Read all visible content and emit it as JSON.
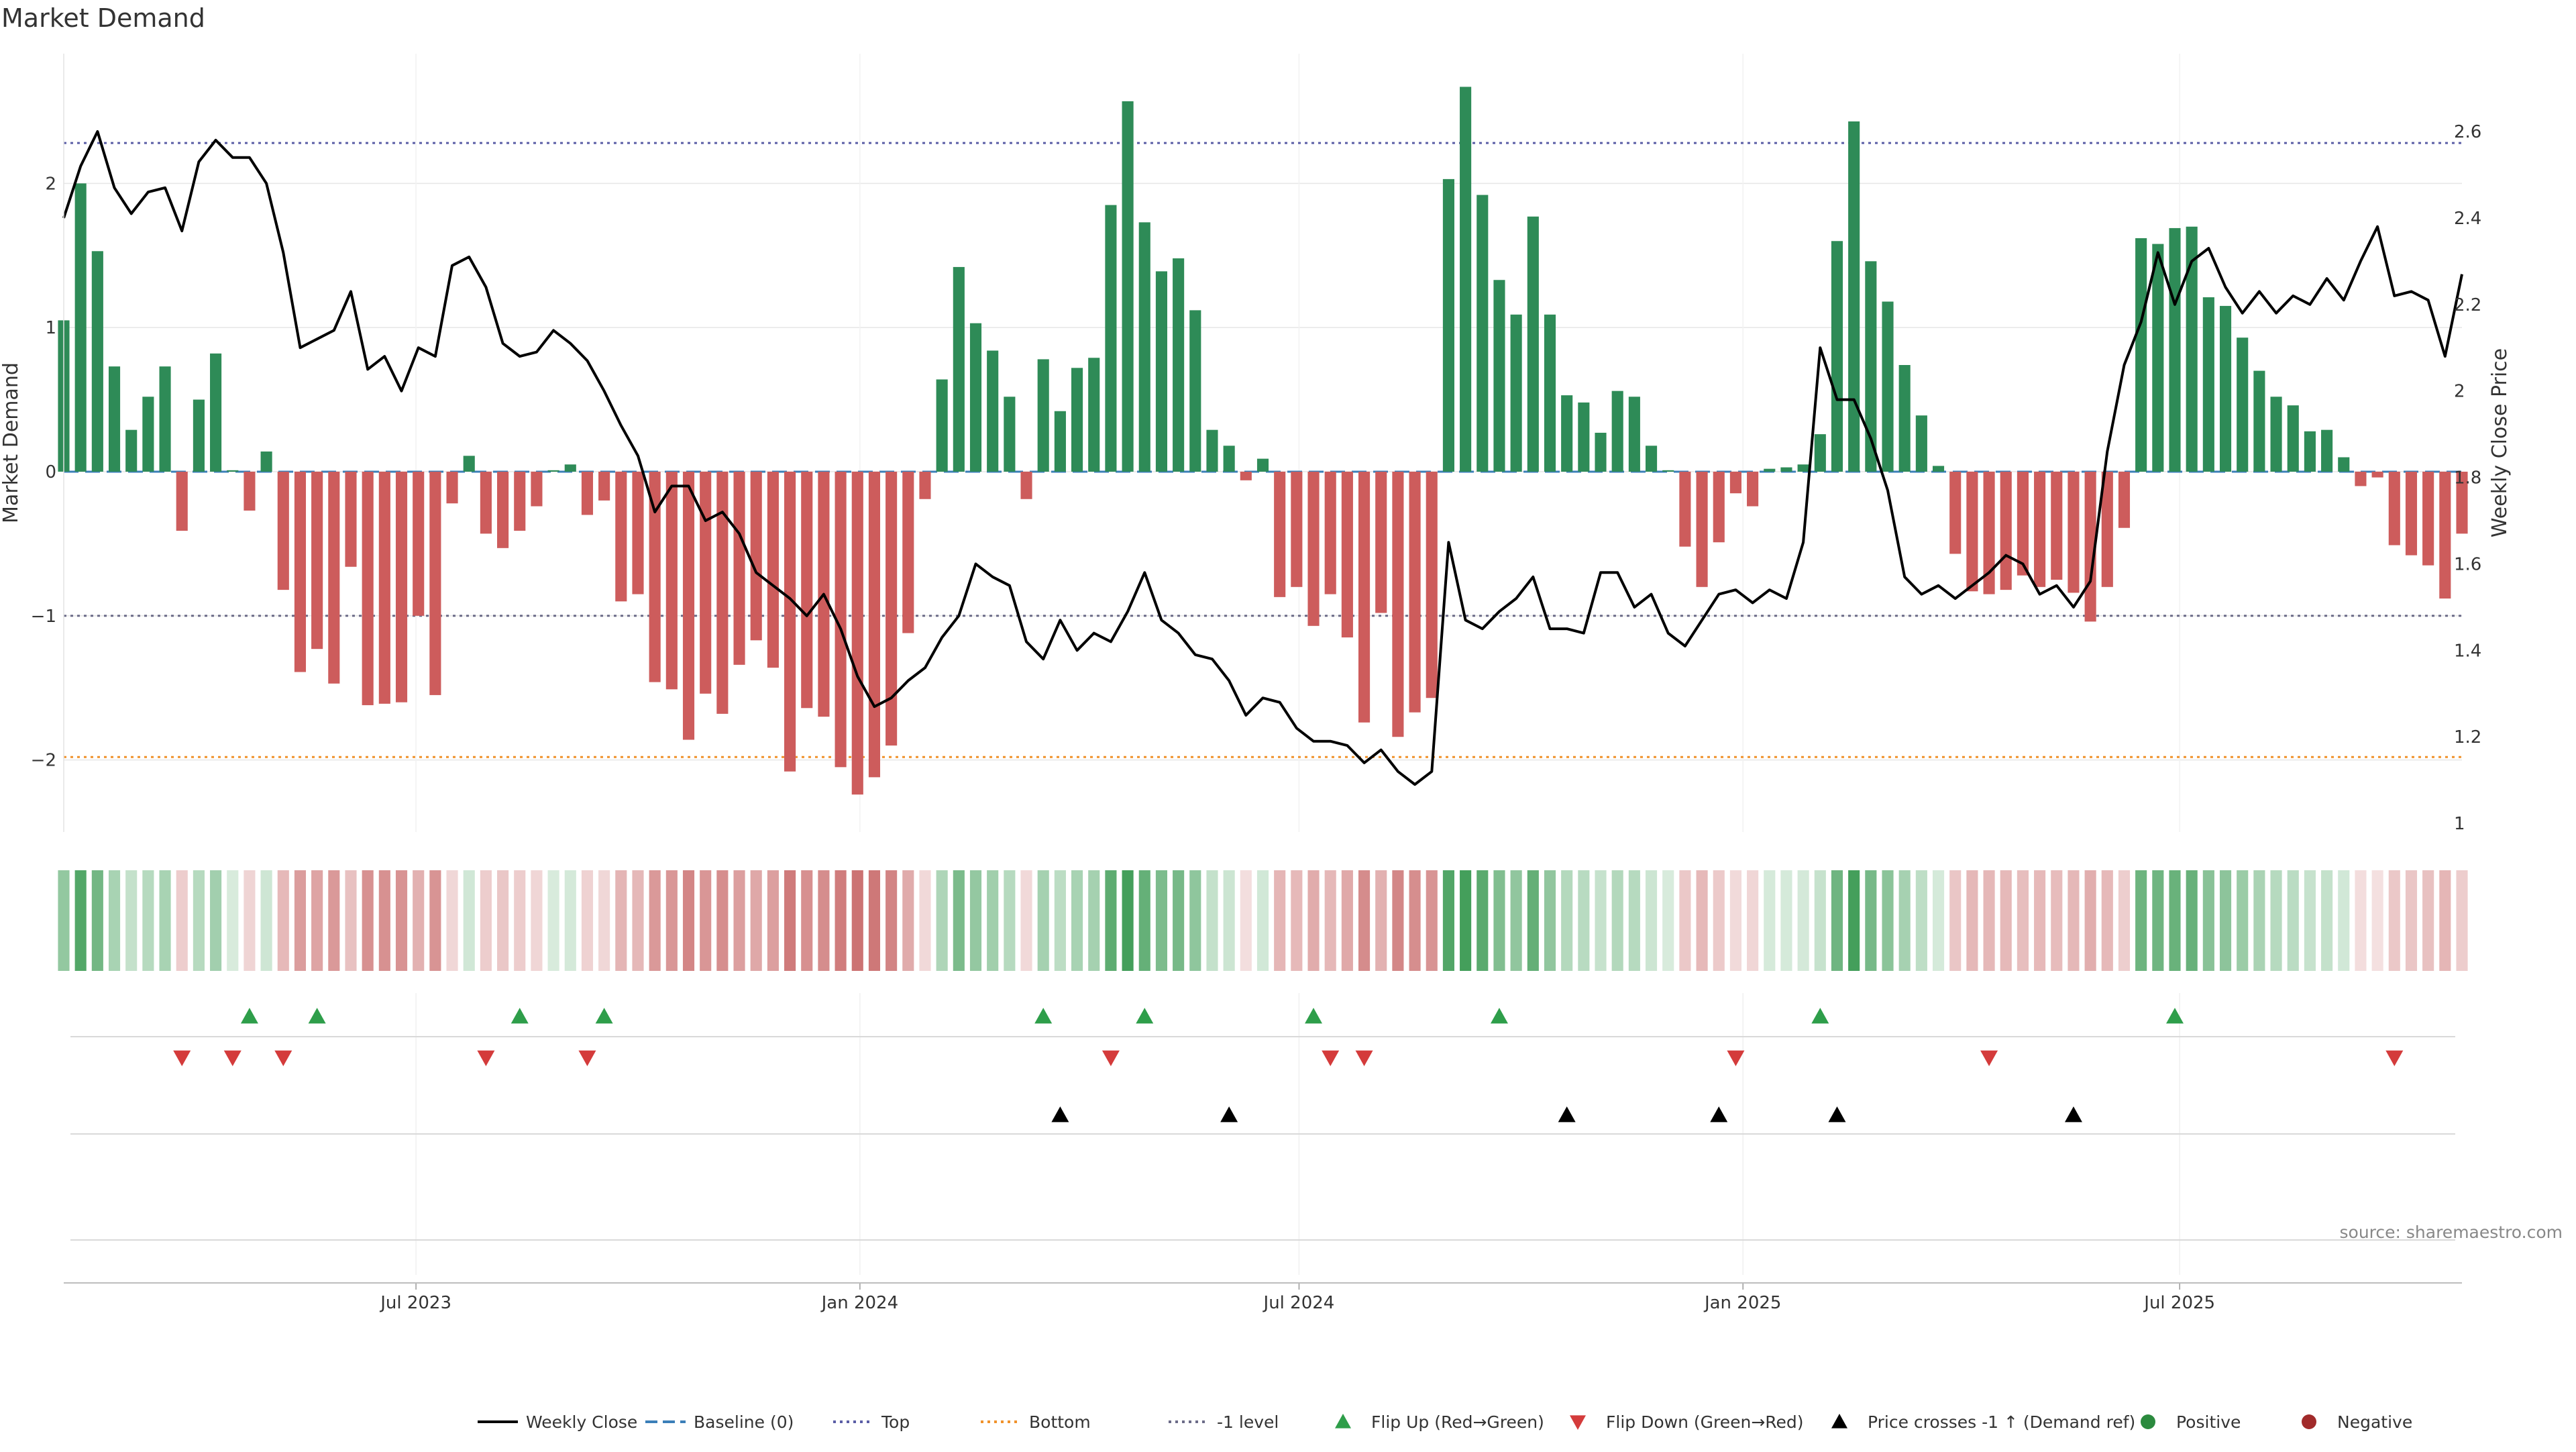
{
  "chart_data": {
    "type": "bar",
    "title": "Market Demand",
    "source": "source: sharemaestro.com",
    "left_axis": {
      "label": "Market Demand",
      "range": [
        -2.5,
        2.9
      ],
      "ticks": [
        2,
        1,
        0,
        -1,
        -2
      ],
      "tick_labels": [
        "2",
        "1",
        "0",
        "−1",
        "−2"
      ]
    },
    "right_axis": {
      "label": "Weekly Close Price",
      "range": [
        0.98,
        2.78
      ],
      "ticks": [
        2.6,
        2.4,
        2.2,
        2.0,
        1.8,
        1.6,
        1.4,
        1.2,
        1.0
      ],
      "tick_labels": [
        "2.6",
        "2.4",
        "2.2",
        "2",
        "1.8",
        "1.6",
        "1.4",
        "1.2",
        "1"
      ]
    },
    "x_axis": {
      "start": "2023-02-05",
      "end": "2025-10-26",
      "step_days": 7,
      "ticks": [
        {
          "date": "2023-07-01",
          "label": "Jul 2023"
        },
        {
          "date": "2024-01-01",
          "label": "Jan 2024"
        },
        {
          "date": "2024-07-01",
          "label": "Jul 2024"
        },
        {
          "date": "2025-01-01",
          "label": "Jan 2025"
        },
        {
          "date": "2025-07-01",
          "label": "Jul 2025"
        }
      ]
    },
    "reference_lines": [
      {
        "name": "Top",
        "value": 2.28,
        "color": "#5b5ea6",
        "style": "dotted"
      },
      {
        "name": "Bottom",
        "value": -1.98,
        "color": "#f0922b",
        "style": "dotted"
      },
      {
        "name": "-1 level",
        "value": -1.0,
        "color": "#6b6b88",
        "style": "dotted"
      },
      {
        "name": "Baseline (0)",
        "value": 0,
        "color": "#3b7fb8",
        "style": "dashed"
      }
    ],
    "series": [
      {
        "name": "Market Demand",
        "axis": "left",
        "type": "bar",
        "values": [
          1.05,
          2.0,
          1.53,
          0.73,
          0.29,
          0.52,
          0.73,
          -0.41,
          0.5,
          0.82,
          0.01,
          -0.27,
          0.14,
          -0.82,
          -1.39,
          -1.23,
          -1.47,
          -0.66,
          -1.62,
          -1.61,
          -1.6,
          -1.0,
          -1.55,
          -0.22,
          0.11,
          -0.43,
          -0.53,
          -0.41,
          -0.24,
          0.01,
          0.05,
          -0.3,
          -0.2,
          -0.9,
          -0.85,
          -1.46,
          -1.51,
          -1.86,
          -1.54,
          -1.68,
          -1.34,
          -1.17,
          -1.36,
          -2.08,
          -1.64,
          -1.7,
          -2.05,
          -2.24,
          -2.12,
          -1.9,
          -1.12,
          -0.19,
          0.64,
          1.42,
          1.03,
          0.84,
          0.52,
          -0.19,
          0.78,
          0.42,
          0.72,
          0.79,
          1.85,
          2.57,
          1.73,
          1.39,
          1.48,
          1.12,
          0.29,
          0.18,
          -0.06,
          0.09,
          -0.87,
          -0.8,
          -1.07,
          -0.85,
          -1.15,
          -1.74,
          -0.98,
          -1.84,
          -1.67,
          -1.57,
          2.03,
          2.67,
          1.92,
          1.33,
          1.09,
          1.77,
          1.09,
          0.53,
          0.48,
          0.27,
          0.56,
          0.52,
          0.18,
          0.01,
          -0.52,
          -0.8,
          -0.49,
          -0.15,
          -0.24,
          0.02,
          0.03,
          0.05,
          0.26,
          1.6,
          2.43,
          1.46,
          1.18,
          0.74,
          0.39,
          0.04,
          -0.57,
          -0.83,
          -0.85,
          -0.82,
          -0.72,
          -0.8,
          -0.75,
          -0.84,
          -1.04,
          -0.8,
          -0.39,
          1.62,
          1.58,
          1.69,
          1.7,
          1.21,
          1.15,
          0.93,
          0.7,
          0.52,
          0.46,
          0.28,
          0.29,
          0.1,
          -0.1,
          -0.04,
          -0.51,
          -0.58,
          -0.65,
          -0.88,
          -0.43
        ]
      },
      {
        "name": "Weekly Close",
        "axis": "right",
        "type": "line",
        "color": "#000000",
        "values": [
          2.4,
          2.52,
          2.6,
          2.47,
          2.41,
          2.46,
          2.47,
          2.37,
          2.53,
          2.58,
          2.54,
          2.54,
          2.48,
          2.32,
          2.1,
          2.12,
          2.14,
          2.23,
          2.05,
          2.08,
          2.0,
          2.1,
          2.08,
          2.29,
          2.31,
          2.24,
          2.11,
          2.08,
          2.09,
          2.14,
          2.11,
          2.07,
          2.0,
          1.92,
          1.85,
          1.72,
          1.78,
          1.78,
          1.7,
          1.72,
          1.67,
          1.58,
          1.55,
          1.52,
          1.48,
          1.53,
          1.45,
          1.34,
          1.27,
          1.29,
          1.33,
          1.36,
          1.43,
          1.48,
          1.6,
          1.57,
          1.55,
          1.42,
          1.38,
          1.47,
          1.4,
          1.44,
          1.42,
          1.49,
          1.58,
          1.47,
          1.44,
          1.39,
          1.38,
          1.33,
          1.25,
          1.29,
          1.28,
          1.22,
          1.19,
          1.19,
          1.18,
          1.14,
          1.17,
          1.12,
          1.09,
          1.12,
          1.65,
          1.47,
          1.45,
          1.49,
          1.52,
          1.57,
          1.45,
          1.45,
          1.44,
          1.58,
          1.58,
          1.5,
          1.53,
          1.44,
          1.41,
          1.47,
          1.53,
          1.54,
          1.51,
          1.54,
          1.52,
          1.65,
          2.1,
          1.98,
          1.98,
          1.89,
          1.77,
          1.57,
          1.53,
          1.55,
          1.52,
          1.55,
          1.58,
          1.62,
          1.6,
          1.53,
          1.55,
          1.5,
          1.56,
          1.86,
          2.06,
          2.16,
          2.32,
          2.2,
          2.3,
          2.33,
          2.24,
          2.18,
          2.23,
          2.18,
          2.22,
          2.2,
          2.26,
          2.21,
          2.3,
          2.38,
          2.22,
          2.23,
          2.21,
          2.08,
          2.27
        ]
      }
    ],
    "markers": [
      {
        "name": "Flip Up (Red→Green)",
        "color": "#2e9e4a",
        "shape": "triangle-up",
        "dates": [
          "2023-04-23",
          "2023-05-21",
          "2023-08-13",
          "2023-09-17",
          "2024-03-17",
          "2024-04-28",
          "2024-07-07",
          "2024-09-22",
          "2025-02-02",
          "2025-06-29"
        ]
      },
      {
        "name": "Flip Down (Green→Red)",
        "color": "#d43b3b",
        "shape": "triangle-down",
        "dates": [
          "2023-03-26",
          "2023-04-16",
          "2023-05-07",
          "2023-07-30",
          "2023-09-10",
          "2024-04-14",
          "2024-07-14",
          "2024-07-28",
          "2024-12-29",
          "2025-04-13",
          "2025-09-28"
        ]
      },
      {
        "name": "Price crosses -1 ↑ (Demand ref)",
        "color": "#000000",
        "shape": "triangle-up",
        "dates": [
          "2024-03-24",
          "2024-06-02",
          "2024-10-20",
          "2024-12-22",
          "2025-02-09",
          "2025-05-18"
        ]
      }
    ],
    "legend": [
      {
        "label": "Weekly Close",
        "kind": "line",
        "color": "#000000"
      },
      {
        "label": "Baseline (0)",
        "kind": "dashed",
        "color": "#3b7fb8"
      },
      {
        "label": "Top",
        "kind": "dotted",
        "color": "#5b5ea6"
      },
      {
        "label": "Bottom",
        "kind": "dotted",
        "color": "#f0922b"
      },
      {
        "label": "-1 level",
        "kind": "dotted",
        "color": "#6b6b88"
      },
      {
        "label": "Flip Up (Red→Green)",
        "kind": "triangle-up",
        "color": "#2e9e4a"
      },
      {
        "label": "Flip Down (Green→Red)",
        "kind": "triangle-down",
        "color": "#d43b3b"
      },
      {
        "label": "Price crosses -1 ↑ (Demand ref)",
        "kind": "triangle-up",
        "color": "#000000"
      },
      {
        "label": "Positive",
        "kind": "dot",
        "color": "#2b8a3e"
      },
      {
        "label": "Negative",
        "kind": "dot",
        "color": "#a12a2a"
      }
    ],
    "colors": {
      "positive_bar": "#2e8b57",
      "negative_bar": "#cd5c5c",
      "heat_positive": "#3a9a52",
      "heat_negative": "#c96b6b",
      "grid": "#e6e6e6",
      "panel_line": "#d9d9d9"
    }
  }
}
